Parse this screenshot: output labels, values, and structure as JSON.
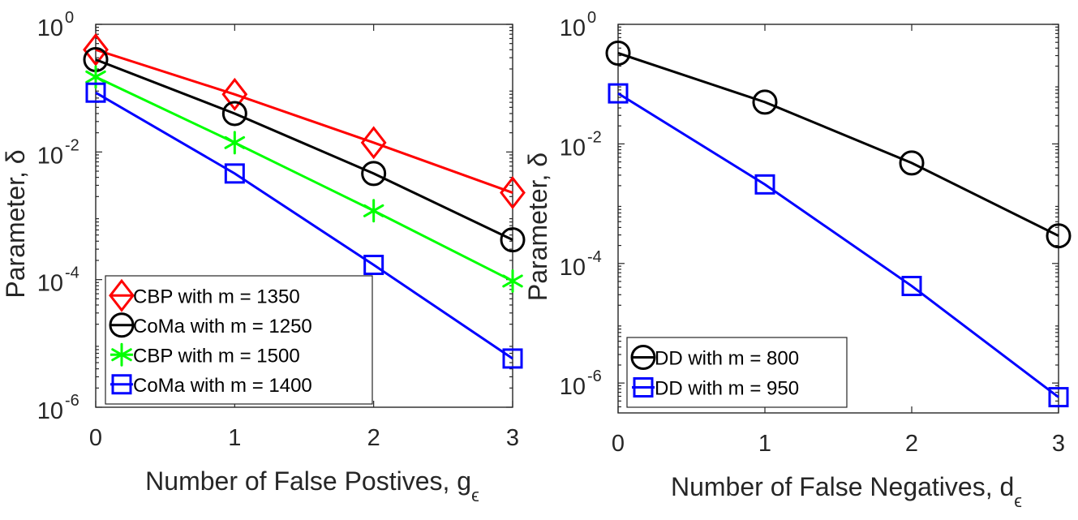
{
  "chart_data": [
    {
      "type": "line",
      "yscale": "log",
      "xlabel": "Number of False Postives, g",
      "xlabel_subscript": "ϵ",
      "ylabel": "Parameter, δ",
      "xlim": [
        0,
        3
      ],
      "ylim_exponents": [
        -6,
        0
      ],
      "xticks": [
        0,
        1,
        2,
        3
      ],
      "yticks": [
        {
          "base": "10",
          "exp": "0",
          "value": 1
        },
        {
          "base": "10",
          "exp": "-2",
          "value": 0.01
        },
        {
          "base": "10",
          "exp": "-4",
          "value": 0.0001
        },
        {
          "base": "10",
          "exp": "-6",
          "value": 1e-06
        }
      ],
      "legend_position": "bottom-left",
      "series": [
        {
          "name": "CBP with m = 1350",
          "color": "#ff0000",
          "marker": "diamond",
          "x": [
            0,
            1,
            2,
            3
          ],
          "y": [
            0.4,
            0.08,
            0.014,
            0.0023
          ]
        },
        {
          "name": "CoMa with m = 1250",
          "color": "#000000",
          "marker": "circle",
          "x": [
            0,
            1,
            2,
            3
          ],
          "y": [
            0.28,
            0.04,
            0.0046,
            0.00042
          ]
        },
        {
          "name": "CBP with m = 1500",
          "color": "#00ff00",
          "marker": "asterisk",
          "x": [
            0,
            1,
            2,
            3
          ],
          "y": [
            0.15,
            0.014,
            0.0012,
            9.5e-05
          ]
        },
        {
          "name": "CoMa with m = 1400",
          "color": "#0000ff",
          "marker": "square",
          "x": [
            0,
            1,
            2,
            3
          ],
          "y": [
            0.085,
            0.0046,
            0.00017,
            5.8e-06
          ]
        }
      ]
    },
    {
      "type": "line",
      "yscale": "log",
      "xlabel": "Number of False Negatives, d",
      "xlabel_subscript": "ϵ",
      "ylabel": "Parameter, δ",
      "xlim": [
        0,
        3
      ],
      "ylim_exponents": [
        -6.5,
        0
      ],
      "xticks": [
        0,
        1,
        2,
        3
      ],
      "yticks": [
        {
          "base": "10",
          "exp": "0",
          "value": 1
        },
        {
          "base": "10",
          "exp": "-2",
          "value": 0.01
        },
        {
          "base": "10",
          "exp": "-4",
          "value": 0.0001
        },
        {
          "base": "10",
          "exp": "-6",
          "value": 1e-06
        }
      ],
      "legend_position": "bottom-left",
      "series": [
        {
          "name": "DD with m = 800",
          "color": "#000000",
          "marker": "circle",
          "x": [
            0,
            1,
            2,
            3
          ],
          "y": [
            0.33,
            0.05,
            0.0048,
            0.00029
          ]
        },
        {
          "name": "DD with m = 950",
          "color": "#0000ff",
          "marker": "square",
          "x": [
            0,
            1,
            2,
            3
          ],
          "y": [
            0.07,
            0.0021,
            4.2e-05,
            5.8e-07
          ]
        }
      ]
    }
  ]
}
